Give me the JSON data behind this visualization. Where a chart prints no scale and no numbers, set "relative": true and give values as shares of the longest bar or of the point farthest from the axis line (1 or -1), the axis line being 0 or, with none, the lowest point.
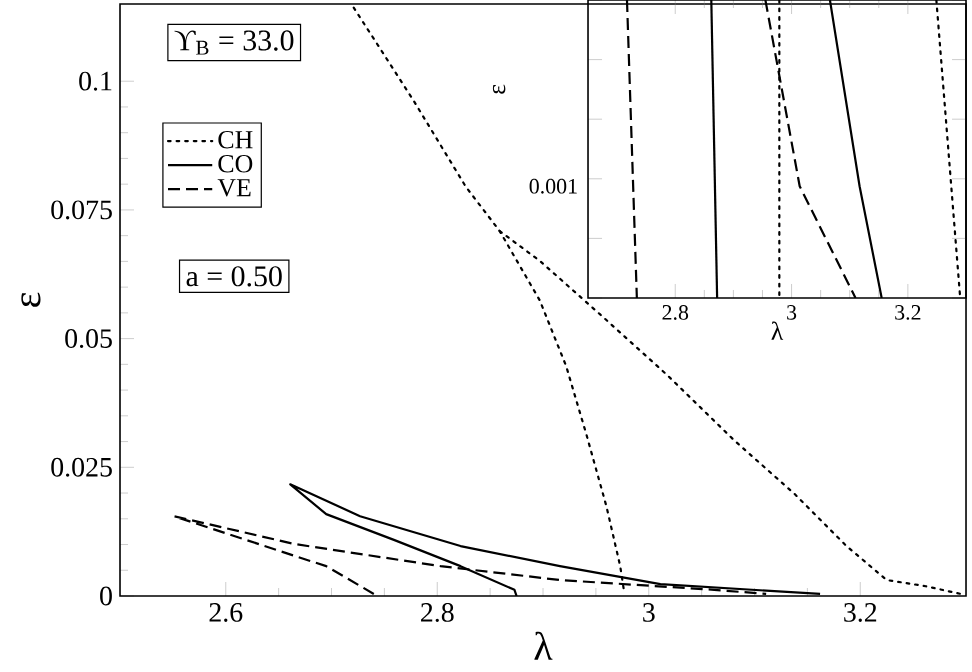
{
  "chart_data": [
    {
      "type": "line",
      "xlabel": "λ",
      "ylabel": "ε",
      "xlim": [
        2.5,
        3.3
      ],
      "ylim": [
        0,
        0.115
      ],
      "xticks": [
        2.6,
        2.8,
        3,
        3.2
      ],
      "yticks": [
        0,
        0.025,
        0.05,
        0.075,
        0.1
      ],
      "legend": "top left",
      "annotations": [
        "ϒ$_{B}$ = 33.0",
        "a = 0.50"
      ],
      "series": [
        {
          "name": "CH",
          "color": "#000000",
          "line_style": "dotted",
          "x": [
            2.721,
            2.778,
            2.827,
            2.859,
            2.897,
            2.922,
            2.941,
            2.96,
            2.973,
            2.977
          ],
          "values": [
            0.1143,
            0.0961,
            0.0795,
            0.0709,
            0.0574,
            0.0446,
            0.0314,
            0.0174,
            0.0058,
            0.0004
          ]
        },
        {
          "color": "#000000",
          "line_style": "dotted",
          "x": [
            2.859,
            2.897,
            2.954,
            3.017,
            3.081,
            3.138,
            3.187,
            3.225,
            3.262,
            3.295
          ],
          "values": [
            0.0709,
            0.0651,
            0.0547,
            0.043,
            0.0302,
            0.0198,
            0.0097,
            0.0031,
            0.0019,
            0.0004
          ]
        },
        {
          "name": "CO",
          "color": "#000000",
          "line_style": "solid",
          "x": [
            2.875,
            2.873,
            2.822,
            2.759,
            2.695,
            2.661,
            2.727,
            2.822,
            2.916,
            3.011,
            3.162
          ],
          "values": [
            0,
            0.0012,
            0.0058,
            0.0109,
            0.0159,
            0.0217,
            0.0155,
            0.0097,
            0.0058,
            0.0023,
            0.0004
          ]
        },
        {
          "name": "VE",
          "color": "#000000",
          "line_style": "dashed",
          "x": [
            2.74,
            2.695,
            2.665,
            2.551,
            2.665,
            2.803,
            2.916,
            3.062,
            3.111
          ],
          "values": [
            0.0004,
            0.0058,
            0.0078,
            0.0155,
            0.0101,
            0.0058,
            0.0031,
            0.0012,
            0.0004
          ]
        }
      ]
    },
    {
      "type": "line",
      "xlabel": "λ",
      "ylabel": "ε",
      "xlim": [
        2.65,
        3.3
      ],
      "relative": true,
      "xticks": [
        2.8,
        3,
        3.2
      ],
      "annotations": [
        "0.001"
      ],
      "series": [
        {
          "color": "#000000",
          "line_style": "dashed",
          "x": [
            2.717,
            2.734
          ],
          "values": [
            1,
            0
          ]
        },
        {
          "color": "#000000",
          "line_style": "solid",
          "x": [
            2.862,
            2.872
          ],
          "values": [
            1,
            0
          ]
        },
        {
          "color": "#000000",
          "line_style": "dotted",
          "x": [
            2.979,
            2.979
          ],
          "values": [
            1,
            0
          ]
        },
        {
          "color": "#000000",
          "line_style": "dashed",
          "x": [
            2.955,
            3.014,
            3.11
          ],
          "values": [
            1,
            0.375,
            0
          ]
        },
        {
          "color": "#000000",
          "line_style": "solid",
          "x": [
            3.066,
            3.117,
            3.155
          ],
          "values": [
            1,
            0.375,
            0
          ]
        },
        {
          "color": "#000000",
          "line_style": "dotted",
          "x": [
            3.249,
            3.29
          ],
          "values": [
            1,
            0
          ]
        }
      ]
    }
  ]
}
